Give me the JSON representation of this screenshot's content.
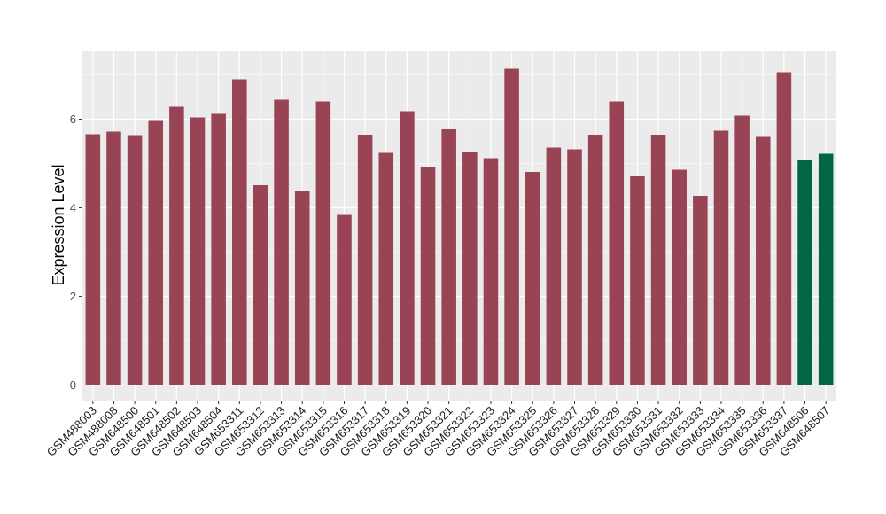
{
  "chart_data": {
    "type": "bar",
    "ylabel": "Expression Level",
    "xlabel": "",
    "ylim": [
      -0.35,
      7.55
    ],
    "yticks": [
      0,
      2,
      4,
      6
    ],
    "grid": true,
    "categories": [
      "GSM488003",
      "GSM488008",
      "GSM648500",
      "GSM648501",
      "GSM648502",
      "GSM648503",
      "GSM648504",
      "GSM653311",
      "GSM653312",
      "GSM653313",
      "GSM653314",
      "GSM653315",
      "GSM653316",
      "GSM653317",
      "GSM653318",
      "GSM653319",
      "GSM653320",
      "GSM653321",
      "GSM653322",
      "GSM653323",
      "GSM653324",
      "GSM653325",
      "GSM653326",
      "GSM653327",
      "GSM653328",
      "GSM653329",
      "GSM653330",
      "GSM653331",
      "GSM653332",
      "GSM653333",
      "GSM653334",
      "GSM653335",
      "GSM653336",
      "GSM653337",
      "GSM648506",
      "GSM648507"
    ],
    "values": [
      5.66,
      5.72,
      5.64,
      5.98,
      6.28,
      6.04,
      6.12,
      6.9,
      4.51,
      6.44,
      4.37,
      6.4,
      3.84,
      5.65,
      5.24,
      6.18,
      4.91,
      5.77,
      5.27,
      5.12,
      7.14,
      4.81,
      5.36,
      5.32,
      5.65,
      6.4,
      4.71,
      5.65,
      4.86,
      4.27,
      5.74,
      6.08,
      5.6,
      7.06,
      5.07,
      5.22
    ],
    "colors": [
      "#994455",
      "#994455",
      "#994455",
      "#994455",
      "#994455",
      "#994455",
      "#994455",
      "#994455",
      "#994455",
      "#994455",
      "#994455",
      "#994455",
      "#994455",
      "#994455",
      "#994455",
      "#994455",
      "#994455",
      "#994455",
      "#994455",
      "#994455",
      "#994455",
      "#994455",
      "#994455",
      "#994455",
      "#994455",
      "#994455",
      "#994455",
      "#994455",
      "#994455",
      "#994455",
      "#994455",
      "#994455",
      "#994455",
      "#994455",
      "#006644",
      "#006644"
    ],
    "panel_background": "#ebebeb",
    "grid_color": "#ffffff"
  }
}
